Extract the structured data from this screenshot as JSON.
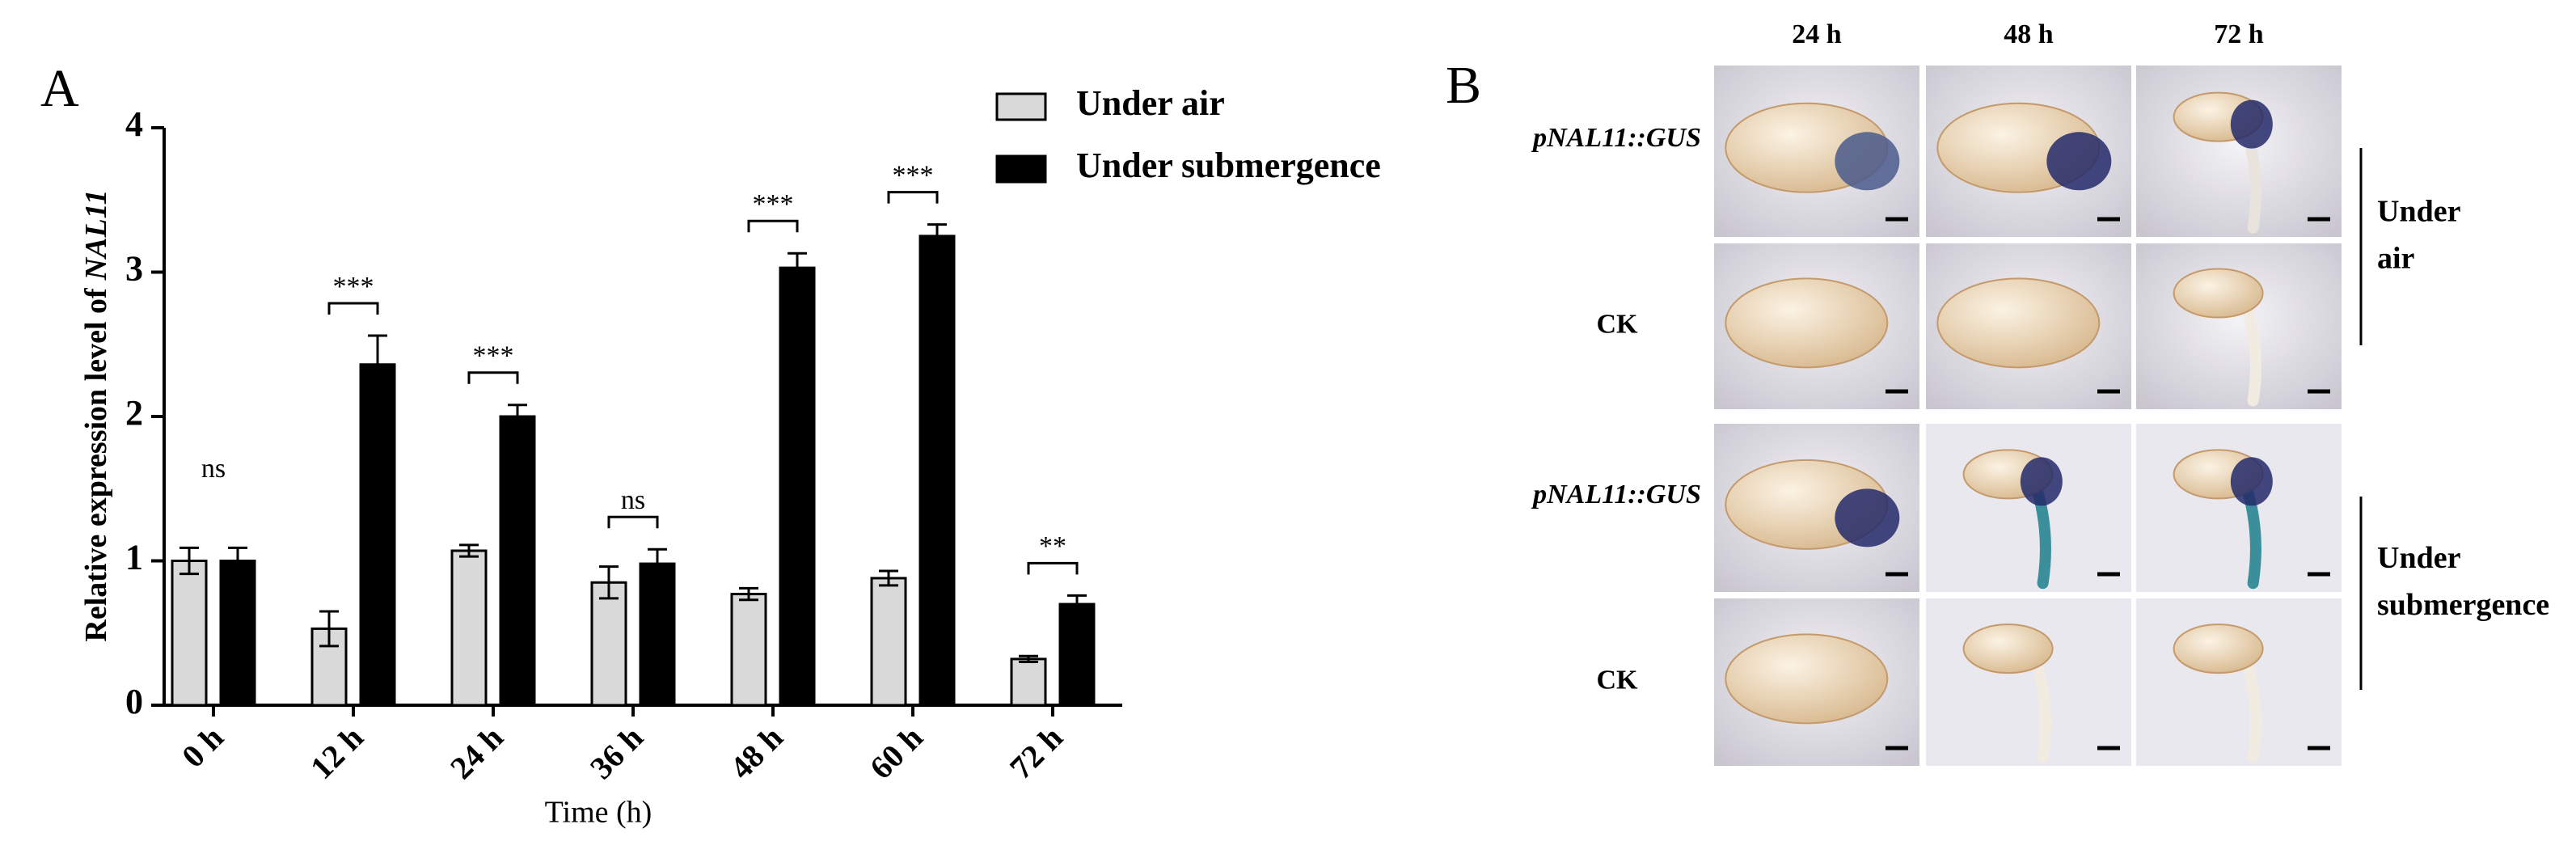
{
  "chart_data": {
    "type": "bar",
    "panel_label": "A",
    "y_label": [
      "Relative expression level of",
      "NAL11"
    ],
    "x_label": "Time (h)",
    "categories": [
      "0 h",
      "12 h",
      "24 h",
      "36 h",
      "48 h",
      "60 h",
      "72 h"
    ],
    "series": [
      {
        "name": "Under air",
        "color": "#d9d9d9",
        "values": [
          1.0,
          0.53,
          1.07,
          0.85,
          0.77,
          0.88,
          0.32
        ],
        "errors": [
          0.09,
          0.12,
          0.04,
          0.11,
          0.04,
          0.05,
          0.02
        ]
      },
      {
        "name": "Under submergence",
        "color": "#000000",
        "values": [
          1.0,
          2.36,
          2.0,
          0.98,
          3.03,
          3.25,
          0.7
        ],
        "errors": [
          0.09,
          0.2,
          0.08,
          0.1,
          0.1,
          0.08,
          0.06
        ]
      }
    ],
    "significance": [
      {
        "label": "ns",
        "bracket": false
      },
      {
        "label": "***",
        "bracket": true
      },
      {
        "label": "***",
        "bracket": true
      },
      {
        "label": "ns",
        "bracket": true
      },
      {
        "label": "***",
        "bracket": true
      },
      {
        "label": "***",
        "bracket": true
      },
      {
        "label": "**",
        "bracket": true
      }
    ],
    "ylim": [
      0,
      4
    ],
    "yticks": [
      0,
      1,
      2,
      3,
      4
    ],
    "grid": false,
    "legend": "top-right"
  },
  "panel_b": {
    "label": "B",
    "columns": [
      "24 h",
      "48 h",
      "72 h"
    ],
    "rows": [
      "pNAL11::GUS",
      "CK",
      "pNAL11::GUS",
      "CK"
    ],
    "groups": [
      [
        "Under",
        "air"
      ],
      [
        "Under",
        "submergence"
      ]
    ]
  }
}
